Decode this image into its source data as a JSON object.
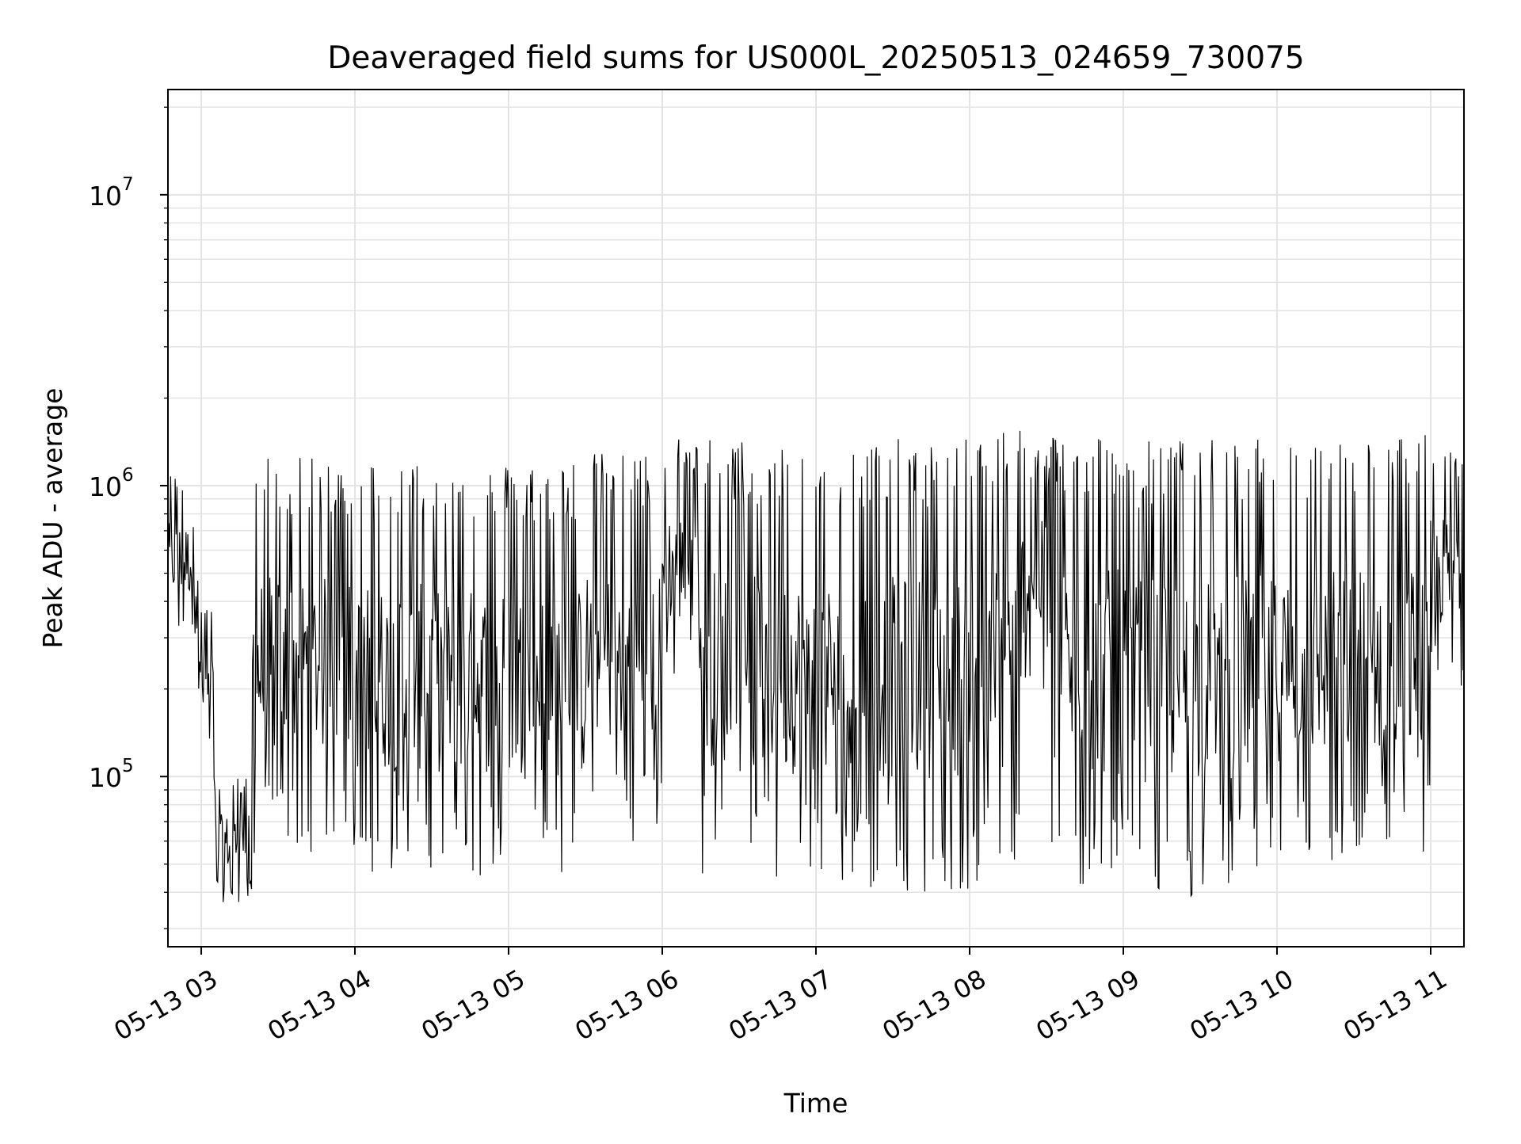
{
  "chart_data": {
    "type": "line",
    "title": "Deaveraged field sums for US000L_20250513_024659_730075",
    "xlabel": "Time",
    "ylabel": "Peak ADU - average",
    "x_axis": {
      "kind": "datetime",
      "range": [
        "2025-05-13 02:47",
        "2025-05-13 11:13"
      ],
      "ticks": [
        {
          "value": "2025-05-13 03:00",
          "label": "05-13 03"
        },
        {
          "value": "2025-05-13 04:00",
          "label": "05-13 04"
        },
        {
          "value": "2025-05-13 05:00",
          "label": "05-13 05"
        },
        {
          "value": "2025-05-13 06:00",
          "label": "05-13 06"
        },
        {
          "value": "2025-05-13 07:00",
          "label": "05-13 07"
        },
        {
          "value": "2025-05-13 08:00",
          "label": "05-13 08"
        },
        {
          "value": "2025-05-13 09:00",
          "label": "05-13 09"
        },
        {
          "value": "2025-05-13 10:00",
          "label": "05-13 10"
        },
        {
          "value": "2025-05-13 11:00",
          "label": "05-13 11"
        }
      ]
    },
    "y_axis": {
      "scale": "log",
      "range": [
        26000,
        23000000
      ],
      "ticks": [
        {
          "value": 100000,
          "base": "10",
          "exp": "5"
        },
        {
          "value": 1000000,
          "base": "10",
          "exp": "6"
        },
        {
          "value": 10000000,
          "base": "10",
          "exp": "7"
        }
      ]
    },
    "grid": true,
    "legend": "none",
    "series": [
      {
        "color": "#000000",
        "segments": [
          {
            "start": "2025-05-13 02:47",
            "end": "2025-05-13 02:59",
            "low": 300000,
            "high": 1100000
          },
          {
            "start": "2025-05-13 02:59",
            "end": "2025-05-13 03:05",
            "low": 110000,
            "high": 400000
          },
          {
            "start": "2025-05-13 03:05",
            "end": "2025-05-13 03:20",
            "low": 37000,
            "high": 100000
          },
          {
            "start": "2025-05-13 03:20",
            "end": "2025-05-13 03:35",
            "low": 50000,
            "high": 1300000
          },
          {
            "start": "2025-05-13 03:35",
            "end": "2025-05-13 04:00",
            "low": 55000,
            "high": 1250000
          },
          {
            "start": "2025-05-13 04:00",
            "end": "2025-05-13 04:30",
            "low": 45000,
            "high": 1250000
          },
          {
            "start": "2025-05-13 04:30",
            "end": "2025-05-13 05:00",
            "low": 45000,
            "high": 1200000
          },
          {
            "start": "2025-05-13 05:00",
            "end": "2025-05-13 05:30",
            "low": 42000,
            "high": 1250000
          },
          {
            "start": "2025-05-13 05:30",
            "end": "2025-05-13 06:00",
            "low": 60000,
            "high": 1300000
          },
          {
            "start": "2025-05-13 06:00",
            "end": "2025-05-13 06:15",
            "low": 200000,
            "high": 1500000
          },
          {
            "start": "2025-05-13 06:15",
            "end": "2025-05-13 06:30",
            "low": 45000,
            "high": 1500000
          },
          {
            "start": "2025-05-13 06:30",
            "end": "2025-05-13 07:00",
            "low": 42000,
            "high": 1450000
          },
          {
            "start": "2025-05-13 07:00",
            "end": "2025-05-13 07:30",
            "low": 40000,
            "high": 1450000
          },
          {
            "start": "2025-05-13 07:30",
            "end": "2025-05-13 08:00",
            "low": 40000,
            "high": 1450000
          },
          {
            "start": "2025-05-13 08:00",
            "end": "2025-05-13 08:20",
            "low": 38000,
            "high": 1750000
          },
          {
            "start": "2025-05-13 08:20",
            "end": "2025-05-13 08:30",
            "low": 180000,
            "high": 1400000
          },
          {
            "start": "2025-05-13 08:30",
            "end": "2025-05-13 09:00",
            "low": 40000,
            "high": 1550000
          },
          {
            "start": "2025-05-13 09:00",
            "end": "2025-05-13 09:30",
            "low": 38000,
            "high": 1450000
          },
          {
            "start": "2025-05-13 09:30",
            "end": "2025-05-13 10:00",
            "low": 40000,
            "high": 1450000
          },
          {
            "start": "2025-05-13 10:00",
            "end": "2025-05-13 10:30",
            "low": 48000,
            "high": 1450000
          },
          {
            "start": "2025-05-13 10:30",
            "end": "2025-05-13 11:00",
            "low": 48000,
            "high": 1500000
          },
          {
            "start": "2025-05-13 11:00",
            "end": "2025-05-13 11:13",
            "low": 200000,
            "high": 1400000
          }
        ]
      }
    ]
  }
}
